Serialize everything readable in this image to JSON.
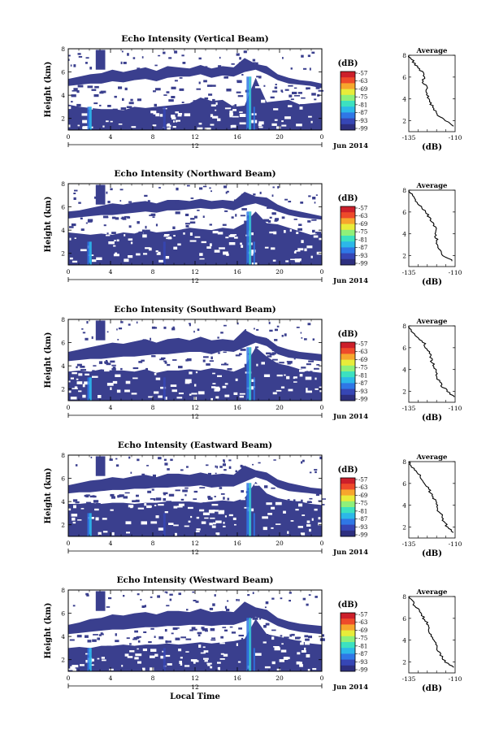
{
  "chart_data": [
    {
      "type": "heatmap",
      "title": "Echo Intensity (Vertical Beam)",
      "ylabel": "Height (km)",
      "xlabel": "",
      "yticks": [
        "2",
        "4",
        "6",
        "8"
      ],
      "xticks": [
        "0",
        "4",
        "8",
        "12",
        "16",
        "20",
        "0"
      ],
      "xlim": [
        0,
        24
      ],
      "ylim": [
        1,
        8
      ],
      "date_center": "12",
      "date_label": "Jun 2014",
      "colorbar": {
        "unit": "(dB)",
        "ticks": [
          "-57",
          "-63",
          "-69",
          "-75",
          "-81",
          "-87",
          "-93",
          "-99"
        ]
      },
      "average": {
        "title": "Average",
        "xlabel": "(dB)",
        "xticks": [
          "-135",
          "-110"
        ],
        "yticks": [
          "2",
          "4",
          "6",
          "8"
        ],
        "xlim": [
          -135,
          -110
        ],
        "ylim": [
          1,
          8
        ],
        "profile": [
          [
            -111,
            1.5
          ],
          [
            -115,
            2.0
          ],
          [
            -120,
            2.5
          ],
          [
            -121,
            3.0
          ],
          [
            -123,
            3.5
          ],
          [
            -124,
            4.0
          ],
          [
            -125,
            4.5
          ],
          [
            -125,
            5.0
          ],
          [
            -127,
            5.5
          ],
          [
            -127,
            6.0
          ],
          [
            -128,
            6.5
          ],
          [
            -131,
            7.0
          ],
          [
            -133,
            7.5
          ],
          [
            -135,
            8.0
          ]
        ]
      },
      "layers": {
        "lower_top": [
          3.2,
          3.0,
          2.9,
          2.8,
          2.8,
          2.7,
          3.0,
          2.9,
          3.0,
          3.1,
          3.2,
          3.3,
          3.8,
          3.5,
          3.6,
          3.0,
          3.1,
          5.5,
          3.4,
          3.5,
          3.6,
          3.2,
          3.3,
          3.4
        ],
        "upper_bottom": [
          4.8,
          4.9,
          5.0,
          5.0,
          5.2,
          5.1,
          5.3,
          5.4,
          5.2,
          5.5,
          5.6,
          5.6,
          5.8,
          5.5,
          5.7,
          5.6,
          6.0,
          6.2,
          5.8,
          5.3,
          5.0,
          4.9,
          4.8,
          4.6
        ],
        "upper_top": [
          5.4,
          5.6,
          5.8,
          5.9,
          6.2,
          6.0,
          6.2,
          6.4,
          6.1,
          6.5,
          6.4,
          6.3,
          6.6,
          6.3,
          6.5,
          6.4,
          7.2,
          6.7,
          6.5,
          5.8,
          5.5,
          5.3,
          5.2,
          5.0
        ]
      }
    },
    {
      "type": "heatmap",
      "title": "Echo Intensity (Northward Beam)",
      "ylabel": "Height (km)",
      "xlabel": "",
      "yticks": [
        "2",
        "4",
        "6",
        "8"
      ],
      "xticks": [
        "0",
        "4",
        "8",
        "12",
        "16",
        "20",
        "0"
      ],
      "xlim": [
        0,
        24
      ],
      "ylim": [
        1,
        8
      ],
      "date_center": "12",
      "date_label": "Jun 2014",
      "colorbar": {
        "unit": "(dB)",
        "ticks": [
          "-57",
          "-63",
          "-69",
          "-75",
          "-81",
          "-87",
          "-93",
          "-99"
        ]
      },
      "average": {
        "title": "Average",
        "xlabel": "(dB)",
        "xticks": [
          "-135",
          "-110"
        ],
        "yticks": [
          "2",
          "4",
          "6",
          "8"
        ],
        "xlim": [
          -135,
          -110
        ],
        "ylim": [
          1,
          8
        ],
        "profile": [
          [
            -111,
            1.5
          ],
          [
            -116,
            2.0
          ],
          [
            -118,
            2.5
          ],
          [
            -120,
            3.0
          ],
          [
            -120,
            3.5
          ],
          [
            -121,
            4.0
          ],
          [
            -120,
            4.5
          ],
          [
            -122,
            5.0
          ],
          [
            -124,
            5.5
          ],
          [
            -126,
            6.0
          ],
          [
            -128,
            6.5
          ],
          [
            -131,
            7.0
          ],
          [
            -133,
            7.5
          ],
          [
            -135,
            8.0
          ]
        ]
      },
      "layers": {
        "lower_top": [
          3.8,
          3.7,
          3.6,
          3.7,
          3.6,
          3.8,
          3.7,
          4.0,
          3.8,
          3.9,
          4.0,
          4.2,
          4.1,
          4.0,
          4.2,
          4.1,
          4.6,
          5.6,
          4.6,
          4.5,
          4.2,
          3.9,
          3.6,
          3.7
        ],
        "upper_bottom": [
          5.0,
          5.1,
          5.2,
          5.3,
          5.3,
          5.4,
          5.5,
          5.6,
          5.5,
          5.7,
          5.7,
          5.8,
          5.9,
          5.8,
          5.9,
          5.7,
          6.1,
          6.3,
          6.0,
          5.6,
          5.3,
          5.1,
          5.0,
          4.9
        ],
        "upper_top": [
          5.6,
          5.7,
          5.9,
          6.1,
          6.3,
          6.2,
          6.4,
          6.5,
          6.3,
          6.6,
          6.6,
          6.5,
          6.7,
          6.5,
          6.6,
          6.5,
          7.3,
          6.9,
          6.8,
          6.2,
          5.8,
          5.6,
          5.4,
          5.2
        ]
      }
    },
    {
      "type": "heatmap",
      "title": "Echo Intensity (Southward Beam)",
      "ylabel": "Height (km)",
      "xlabel": "",
      "yticks": [
        "2",
        "4",
        "6",
        "8"
      ],
      "xticks": [
        "0",
        "4",
        "8",
        "12",
        "16",
        "20",
        "0"
      ],
      "xlim": [
        0,
        24
      ],
      "ylim": [
        1,
        8
      ],
      "date_center": "12",
      "date_label": "Jun 2014",
      "colorbar": {
        "unit": "(dB)",
        "ticks": [
          "-57",
          "-63",
          "-69",
          "-75",
          "-81",
          "-87",
          "-93",
          "-99"
        ]
      },
      "average": {
        "title": "Average",
        "xlabel": "(dB)",
        "xticks": [
          "-135",
          "-110"
        ],
        "yticks": [
          "2",
          "4",
          "6",
          "8"
        ],
        "xlim": [
          -135,
          -110
        ],
        "ylim": [
          1,
          8
        ],
        "profile": [
          [
            -111,
            1.5
          ],
          [
            -114,
            2.0
          ],
          [
            -117,
            2.5
          ],
          [
            -119,
            3.0
          ],
          [
            -120,
            3.5
          ],
          [
            -121,
            4.0
          ],
          [
            -122,
            4.5
          ],
          [
            -123,
            5.0
          ],
          [
            -124,
            5.5
          ],
          [
            -126,
            6.0
          ],
          [
            -127,
            6.5
          ],
          [
            -131,
            7.0
          ],
          [
            -133,
            7.5
          ],
          [
            -135,
            8.0
          ]
        ]
      },
      "layers": {
        "lower_top": [
          3.5,
          3.6,
          3.5,
          3.7,
          3.6,
          3.6,
          3.5,
          3.7,
          3.4,
          3.6,
          3.6,
          3.7,
          3.6,
          3.8,
          3.7,
          3.5,
          3.9,
          5.6,
          4.8,
          4.2,
          4.0,
          3.7,
          3.5,
          3.4
        ],
        "upper_bottom": [
          4.4,
          4.5,
          4.6,
          4.6,
          4.7,
          4.8,
          4.8,
          4.9,
          5.0,
          5.0,
          5.1,
          5.2,
          5.2,
          5.0,
          5.3,
          5.2,
          5.6,
          6.0,
          5.7,
          5.0,
          4.7,
          4.6,
          4.5,
          4.4
        ],
        "upper_top": [
          5.2,
          5.4,
          5.6,
          5.8,
          6.0,
          5.9,
          6.1,
          6.3,
          6.0,
          6.3,
          6.4,
          6.2,
          6.5,
          6.2,
          6.3,
          6.2,
          7.1,
          6.6,
          6.4,
          5.7,
          5.4,
          5.2,
          5.1,
          5.0
        ]
      }
    },
    {
      "type": "heatmap",
      "title": "Echo Intensity (Eastward Beam)",
      "ylabel": "Height (km)",
      "xlabel": "",
      "yticks": [
        "2",
        "4",
        "6",
        "8"
      ],
      "xticks": [
        "0",
        "4",
        "8",
        "12",
        "16",
        "20",
        "0"
      ],
      "xlim": [
        0,
        24
      ],
      "ylim": [
        1,
        8
      ],
      "date_center": "12",
      "date_label": "Jun 2014",
      "colorbar": {
        "unit": "(dB)",
        "ticks": [
          "-57",
          "-63",
          "-69",
          "-75",
          "-81",
          "-87",
          "-93",
          "-99"
        ]
      },
      "average": {
        "title": "Average",
        "xlabel": "(dB)",
        "xticks": [
          "-135",
          "-110"
        ],
        "yticks": [
          "2",
          "4",
          "6",
          "8"
        ],
        "xlim": [
          -135,
          -110
        ],
        "ylim": [
          1,
          8
        ],
        "profile": [
          [
            -111,
            1.5
          ],
          [
            -114,
            2.0
          ],
          [
            -116,
            2.5
          ],
          [
            -117,
            3.0
          ],
          [
            -119,
            3.5
          ],
          [
            -120,
            4.0
          ],
          [
            -121,
            4.5
          ],
          [
            -123,
            5.0
          ],
          [
            -124,
            5.5
          ],
          [
            -127,
            6.0
          ],
          [
            -128,
            6.5
          ],
          [
            -130,
            7.0
          ],
          [
            -133,
            7.5
          ],
          [
            -135,
            8.0
          ]
        ]
      },
      "layers": {
        "lower_top": [
          3.8,
          3.8,
          3.9,
          3.8,
          3.9,
          3.9,
          3.8,
          3.9,
          3.9,
          4.0,
          4.0,
          4.0,
          3.9,
          4.0,
          4.1,
          4.0,
          4.3,
          5.7,
          4.7,
          4.3,
          4.1,
          4.0,
          3.8,
          3.7
        ],
        "upper_bottom": [
          4.7,
          4.8,
          4.8,
          4.9,
          5.0,
          5.0,
          5.1,
          5.1,
          5.2,
          5.2,
          5.3,
          5.3,
          5.4,
          5.2,
          5.3,
          5.3,
          5.7,
          6.1,
          5.8,
          5.2,
          4.9,
          4.8,
          4.7,
          4.6
        ],
        "upper_top": [
          5.4,
          5.6,
          5.8,
          5.9,
          6.1,
          6.0,
          6.2,
          6.3,
          6.1,
          6.4,
          6.4,
          6.3,
          6.5,
          6.3,
          6.4,
          6.3,
          7.1,
          6.7,
          6.5,
          5.9,
          5.6,
          5.4,
          5.2,
          5.1
        ]
      }
    },
    {
      "type": "heatmap",
      "title": "Echo Intensity (Westward Beam)",
      "ylabel": "Height (km)",
      "xlabel": "Local Time",
      "yticks": [
        "2",
        "4",
        "6",
        "8"
      ],
      "xticks": [
        "0",
        "4",
        "8",
        "12",
        "16",
        "20",
        "0"
      ],
      "xlim": [
        0,
        24
      ],
      "ylim": [
        1,
        8
      ],
      "date_center": "12",
      "date_label": "Jun 2014",
      "colorbar": {
        "unit": "(dB)",
        "ticks": [
          "-57",
          "-63",
          "-69",
          "-75",
          "-81",
          "-87",
          "-93",
          "-99"
        ]
      },
      "average": {
        "title": "Average",
        "xlabel": "(dB)",
        "xticks": [
          "-135",
          "-110"
        ],
        "yticks": [
          "2",
          "4",
          "6",
          "8"
        ],
        "xlim": [
          -135,
          -110
        ],
        "ylim": [
          1,
          8
        ],
        "profile": [
          [
            -111,
            1.5
          ],
          [
            -115,
            2.0
          ],
          [
            -117,
            2.5
          ],
          [
            -119,
            3.0
          ],
          [
            -120,
            3.5
          ],
          [
            -122,
            4.0
          ],
          [
            -123,
            4.5
          ],
          [
            -124,
            5.0
          ],
          [
            -125,
            5.5
          ],
          [
            -127,
            6.0
          ],
          [
            -128,
            6.5
          ],
          [
            -131,
            7.0
          ],
          [
            -133,
            7.5
          ],
          [
            -135,
            8.0
          ]
        ]
      },
      "layers": {
        "lower_top": [
          3.0,
          3.1,
          3.0,
          3.2,
          3.2,
          3.3,
          3.2,
          3.3,
          3.3,
          3.4,
          3.3,
          3.4,
          3.5,
          3.4,
          3.5,
          3.6,
          3.8,
          5.5,
          4.2,
          4.0,
          3.8,
          3.6,
          3.4,
          3.3
        ],
        "upper_bottom": [
          4.2,
          4.3,
          4.4,
          4.5,
          4.6,
          4.6,
          4.7,
          4.8,
          4.8,
          4.9,
          4.9,
          5.0,
          5.0,
          4.9,
          5.0,
          5.0,
          5.3,
          5.7,
          5.4,
          4.9,
          4.6,
          4.4,
          4.3,
          4.2
        ],
        "upper_top": [
          5.0,
          5.2,
          5.5,
          5.6,
          5.9,
          5.8,
          6.0,
          6.1,
          5.9,
          6.2,
          6.2,
          6.1,
          6.4,
          6.1,
          6.2,
          6.1,
          7.0,
          6.5,
          6.3,
          5.6,
          5.3,
          5.1,
          5.0,
          4.9
        ]
      }
    }
  ],
  "colors": {
    "background": "#3a3f8e",
    "cmap": [
      "#2d2f7f",
      "#3646b5",
      "#2f77e6",
      "#2cb8e8",
      "#3ce1c0",
      "#8ff07a",
      "#e8ec3a",
      "#f7a62d",
      "#ee4a2a",
      "#cc1f2a"
    ],
    "plot_bg": "#ffffff"
  }
}
